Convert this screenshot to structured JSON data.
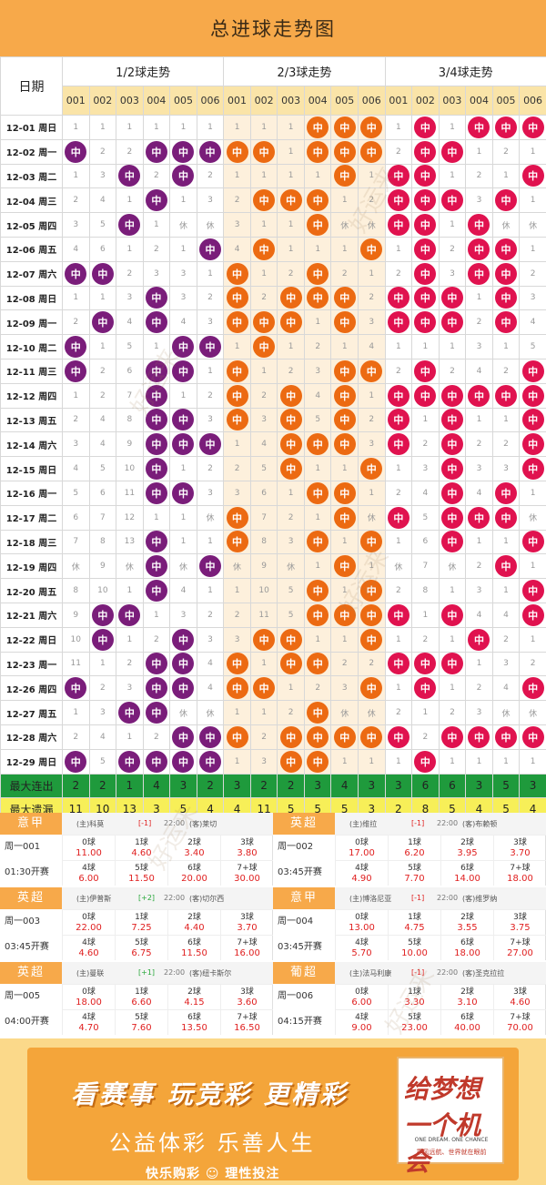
{
  "title": "总进球走势图",
  "header": {
    "date_label": "日期",
    "groups": [
      "1/2球走势",
      "2/3球走势",
      "3/4球走势"
    ],
    "columns": [
      "001",
      "002",
      "003",
      "004",
      "005",
      "006",
      "001",
      "002",
      "003",
      "004",
      "005",
      "006",
      "001",
      "002",
      "003",
      "004",
      "005",
      "006"
    ]
  },
  "hit_label": "中",
  "rows": [
    {
      "date": "12-01 周日",
      "cells": [
        "1",
        "1",
        "1",
        "1",
        "1",
        "1",
        "1",
        "1",
        "1",
        "中",
        "中",
        "中",
        "1",
        "中",
        "1",
        "中",
        "中",
        "中"
      ]
    },
    {
      "date": "12-02 周一",
      "cells": [
        "中",
        "2",
        "2",
        "中",
        "中",
        "中",
        "中",
        "中",
        "1",
        "中",
        "中",
        "中",
        "2",
        "中",
        "中",
        "1",
        "2",
        "1"
      ]
    },
    {
      "date": "12-03 周二",
      "cells": [
        "1",
        "3",
        "中",
        "2",
        "中",
        "2",
        "1",
        "1",
        "1",
        "1",
        "中",
        "1",
        "中",
        "中",
        "1",
        "2",
        "1",
        "中"
      ]
    },
    {
      "date": "12-04 周三",
      "cells": [
        "2",
        "4",
        "1",
        "中",
        "1",
        "3",
        "2",
        "中",
        "中",
        "中",
        "1",
        "2",
        "中",
        "中",
        "中",
        "3",
        "中",
        "1"
      ]
    },
    {
      "date": "12-05 周四",
      "cells": [
        "3",
        "5",
        "中",
        "1",
        "休",
        "休",
        "3",
        "1",
        "1",
        "中",
        "休",
        "休",
        "中",
        "中",
        "1",
        "中",
        "休",
        "休"
      ]
    },
    {
      "date": "12-06 周五",
      "cells": [
        "4",
        "6",
        "1",
        "2",
        "1",
        "中",
        "4",
        "中",
        "1",
        "1",
        "1",
        "中",
        "1",
        "中",
        "2",
        "中",
        "中",
        "1"
      ]
    },
    {
      "date": "12-07 周六",
      "cells": [
        "中",
        "中",
        "2",
        "3",
        "3",
        "1",
        "中",
        "1",
        "2",
        "中",
        "2",
        "1",
        "2",
        "中",
        "3",
        "中",
        "中",
        "2"
      ]
    },
    {
      "date": "12-08 周日",
      "cells": [
        "1",
        "1",
        "3",
        "中",
        "3",
        "2",
        "中",
        "2",
        "中",
        "中",
        "中",
        "2",
        "中",
        "中",
        "中",
        "1",
        "中",
        "3"
      ]
    },
    {
      "date": "12-09 周一",
      "cells": [
        "2",
        "中",
        "4",
        "中",
        "4",
        "3",
        "中",
        "中",
        "中",
        "1",
        "中",
        "3",
        "中",
        "中",
        "中",
        "2",
        "中",
        "4"
      ]
    },
    {
      "date": "12-10 周二",
      "cells": [
        "中",
        "1",
        "5",
        "1",
        "中",
        "中",
        "1",
        "中",
        "1",
        "2",
        "1",
        "4",
        "1",
        "1",
        "1",
        "3",
        "1",
        "5"
      ]
    },
    {
      "date": "12-11 周三",
      "cells": [
        "中",
        "2",
        "6",
        "中",
        "中",
        "1",
        "中",
        "1",
        "2",
        "3",
        "中",
        "中",
        "2",
        "中",
        "2",
        "4",
        "2",
        "中"
      ]
    },
    {
      "date": "12-12 周四",
      "cells": [
        "1",
        "2",
        "7",
        "中",
        "1",
        "2",
        "中",
        "2",
        "中",
        "4",
        "中",
        "1",
        "中",
        "中",
        "中",
        "中",
        "中",
        "中"
      ]
    },
    {
      "date": "12-13 周五",
      "cells": [
        "2",
        "4",
        "8",
        "中",
        "中",
        "3",
        "中",
        "3",
        "中",
        "5",
        "中",
        "2",
        "中",
        "1",
        "中",
        "1",
        "1",
        "中"
      ]
    },
    {
      "date": "12-14 周六",
      "cells": [
        "3",
        "4",
        "9",
        "中",
        "中",
        "中",
        "1",
        "4",
        "中",
        "中",
        "中",
        "3",
        "中",
        "2",
        "中",
        "2",
        "2",
        "中"
      ]
    },
    {
      "date": "12-15 周日",
      "cells": [
        "4",
        "5",
        "10",
        "中",
        "1",
        "2",
        "2",
        "5",
        "中",
        "1",
        "1",
        "中",
        "1",
        "3",
        "中",
        "3",
        "3",
        "中"
      ]
    },
    {
      "date": "12-16 周一",
      "cells": [
        "5",
        "6",
        "11",
        "中",
        "中",
        "3",
        "3",
        "6",
        "1",
        "中",
        "中",
        "1",
        "2",
        "4",
        "中",
        "4",
        "中",
        "1"
      ]
    },
    {
      "date": "12-17 周二",
      "cells": [
        "6",
        "7",
        "12",
        "1",
        "1",
        "休",
        "中",
        "7",
        "2",
        "1",
        "中",
        "休",
        "中",
        "5",
        "中",
        "中",
        "中",
        "休"
      ]
    },
    {
      "date": "12-18 周三",
      "cells": [
        "7",
        "8",
        "13",
        "中",
        "1",
        "1",
        "中",
        "8",
        "3",
        "中",
        "1",
        "中",
        "1",
        "6",
        "中",
        "1",
        "1",
        "中"
      ]
    },
    {
      "date": "12-19 周四",
      "cells": [
        "休",
        "9",
        "休",
        "中",
        "休",
        "中",
        "休",
        "9",
        "休",
        "1",
        "中",
        "1",
        "休",
        "7",
        "休",
        "2",
        "中",
        "1"
      ]
    },
    {
      "date": "12-20 周五",
      "cells": [
        "8",
        "10",
        "1",
        "中",
        "4",
        "1",
        "1",
        "10",
        "5",
        "中",
        "1",
        "中",
        "2",
        "8",
        "1",
        "3",
        "1",
        "中"
      ]
    },
    {
      "date": "12-21 周六",
      "cells": [
        "9",
        "中",
        "中",
        "1",
        "3",
        "2",
        "2",
        "11",
        "5",
        "中",
        "中",
        "中",
        "中",
        "1",
        "中",
        "4",
        "4",
        "中"
      ]
    },
    {
      "date": "12-22 周日",
      "cells": [
        "10",
        "中",
        "1",
        "2",
        "中",
        "3",
        "3",
        "中",
        "中",
        "1",
        "1",
        "中",
        "1",
        "2",
        "1",
        "中",
        "2",
        "1"
      ]
    },
    {
      "date": "12-23 周一",
      "cells": [
        "11",
        "1",
        "2",
        "中",
        "中",
        "4",
        "中",
        "1",
        "中",
        "中",
        "2",
        "2",
        "中",
        "中",
        "中",
        "1",
        "3",
        "2"
      ]
    },
    {
      "date": "12-26 周四",
      "cells": [
        "中",
        "2",
        "3",
        "中",
        "中",
        "4",
        "中",
        "中",
        "1",
        "2",
        "3",
        "中",
        "1",
        "中",
        "1",
        "2",
        "4",
        "中"
      ]
    },
    {
      "date": "12-27 周五",
      "cells": [
        "1",
        "3",
        "中",
        "中",
        "休",
        "休",
        "1",
        "1",
        "2",
        "中",
        "休",
        "休",
        "2",
        "1",
        "2",
        "3",
        "休",
        "休"
      ]
    },
    {
      "date": "12-28 周六",
      "cells": [
        "2",
        "4",
        "1",
        "2",
        "中",
        "中",
        "中",
        "2",
        "中",
        "中",
        "中",
        "中",
        "中",
        "2",
        "中",
        "中",
        "中",
        "中"
      ]
    },
    {
      "date": "12-29 周日",
      "cells": [
        "中",
        "5",
        "中",
        "中",
        "中",
        "中",
        "1",
        "3",
        "中",
        "中",
        "1",
        "1",
        "1",
        "中",
        "1",
        "1",
        "1",
        "1"
      ]
    }
  ],
  "stats": {
    "max_run_label": "最大连出",
    "max_run": [
      "2",
      "2",
      "1",
      "4",
      "3",
      "2",
      "3",
      "2",
      "2",
      "3",
      "4",
      "3",
      "3",
      "6",
      "6",
      "3",
      "5",
      "3"
    ],
    "max_miss_label": "最大遗漏",
    "max_miss": [
      "11",
      "10",
      "13",
      "3",
      "5",
      "4",
      "4",
      "11",
      "5",
      "5",
      "5",
      "3",
      "2",
      "8",
      "5",
      "4",
      "5",
      "4"
    ]
  },
  "matches": [
    {
      "league": "意甲",
      "league_color": "#f7a94a",
      "home": "(主)科莫",
      "handicap": "[-1]",
      "handicap_type": "minus",
      "time": "22:00",
      "away": "(客)莱切",
      "week": "周一001",
      "kickoff": "01:30开赛",
      "odds": [
        [
          "0球",
          "11.00"
        ],
        [
          "1球",
          "4.60"
        ],
        [
          "2球",
          "3.40"
        ],
        [
          "3球",
          "3.80"
        ],
        [
          "4球",
          "6.00"
        ],
        [
          "5球",
          "11.50"
        ],
        [
          "6球",
          "20.00"
        ],
        [
          "7+球",
          "30.00"
        ]
      ]
    },
    {
      "league": "英超",
      "league_color": "#f7a94a",
      "home": "(主)维拉",
      "handicap": "[-1]",
      "handicap_type": "minus",
      "time": "22:00",
      "away": "(客)布赖顿",
      "week": "周一002",
      "kickoff": "03:45开赛",
      "odds": [
        [
          "0球",
          "17.00"
        ],
        [
          "1球",
          "6.20"
        ],
        [
          "2球",
          "3.95"
        ],
        [
          "3球",
          "3.70"
        ],
        [
          "4球",
          "4.90"
        ],
        [
          "5球",
          "7.70"
        ],
        [
          "6球",
          "14.00"
        ],
        [
          "7+球",
          "18.00"
        ]
      ]
    },
    {
      "league": "英超",
      "league_color": "#f7a94a",
      "home": "(主)伊普斯",
      "handicap": "[+2]",
      "handicap_type": "plus",
      "time": "22:00",
      "away": "(客)切尔西",
      "week": "周一003",
      "kickoff": "03:45开赛",
      "odds": [
        [
          "0球",
          "22.00"
        ],
        [
          "1球",
          "7.25"
        ],
        [
          "2球",
          "4.40"
        ],
        [
          "3球",
          "3.70"
        ],
        [
          "4球",
          "4.60"
        ],
        [
          "5球",
          "6.75"
        ],
        [
          "6球",
          "11.50"
        ],
        [
          "7+球",
          "16.00"
        ]
      ]
    },
    {
      "league": "意甲",
      "league_color": "#f7a94a",
      "home": "(主)博洛尼亚",
      "handicap": "[-1]",
      "handicap_type": "minus",
      "time": "22:00",
      "away": "(客)维罗纳",
      "week": "周一004",
      "kickoff": "03:45开赛",
      "odds": [
        [
          "0球",
          "13.00"
        ],
        [
          "1球",
          "4.75"
        ],
        [
          "2球",
          "3.55"
        ],
        [
          "3球",
          "3.75"
        ],
        [
          "4球",
          "5.70"
        ],
        [
          "5球",
          "10.00"
        ],
        [
          "6球",
          "18.00"
        ],
        [
          "7+球",
          "27.00"
        ]
      ]
    },
    {
      "league": "英超",
      "league_color": "#f7a94a",
      "home": "(主)曼联",
      "handicap": "[+1]",
      "handicap_type": "plus",
      "time": "22:00",
      "away": "(客)纽卡斯尔",
      "week": "周一005",
      "kickoff": "04:00开赛",
      "odds": [
        [
          "0球",
          "18.00"
        ],
        [
          "1球",
          "6.60"
        ],
        [
          "2球",
          "4.15"
        ],
        [
          "3球",
          "3.60"
        ],
        [
          "4球",
          "4.70"
        ],
        [
          "5球",
          "7.60"
        ],
        [
          "6球",
          "13.50"
        ],
        [
          "7+球",
          "16.50"
        ]
      ]
    },
    {
      "league": "葡超",
      "league_color": "#f7a94a",
      "home": "(主)法马利康",
      "handicap": "[-1]",
      "handicap_type": "minus",
      "time": "22:00",
      "away": "(客)圣克拉拉",
      "week": "周一006",
      "kickoff": "04:15开赛",
      "odds": [
        [
          "0球",
          "6.00"
        ],
        [
          "1球",
          "3.30"
        ],
        [
          "2球",
          "3.10"
        ],
        [
          "3球",
          "4.60"
        ],
        [
          "4球",
          "9.00"
        ],
        [
          "5球",
          "23.00"
        ],
        [
          "6球",
          "40.00"
        ],
        [
          "7+球",
          "70.00"
        ]
      ]
    }
  ],
  "banner": {
    "slogan1": "看赛事 玩竞彩 更精彩",
    "slogan2": "公益体彩 乐善人生",
    "brand": "快乐购彩 ☺ 理性投注",
    "dream_title": "给梦想一个机会",
    "dream_en": "ONE DREAM. ONE CHANCE",
    "dream_cn": "乘风远航、世界就在眼前"
  },
  "watermark": "好运来",
  "colors": {
    "group1": "#7a1d7a",
    "group2": "#ec6a12",
    "group3": "#e0124f",
    "accent": "#f7a94a",
    "run_bg": "#1f9a3c",
    "miss_bg": "#f7ef58"
  }
}
